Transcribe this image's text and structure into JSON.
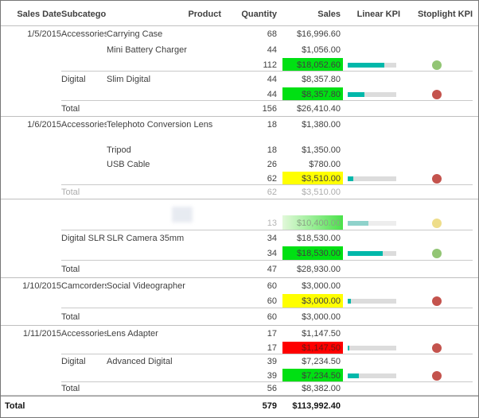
{
  "colors": {
    "kpi_bar_fill": "#01b8aa",
    "kpi_bar_track": "#dcdcdc",
    "sales_bg_green": "#00e013",
    "sales_bg_yellow": "#ffff00",
    "sales_bg_red": "#fe0000",
    "stoplight_green": "#92c574",
    "stoplight_red": "#c4534d",
    "stoplight_yellow": "#eedd8a"
  },
  "chart_data": {
    "type": "table",
    "title": "",
    "columns": [
      "Sales Date",
      "Subcategory",
      "Product",
      "Quantity",
      "Sales",
      "Linear KPI",
      "Stoplight KPI"
    ],
    "rows": [
      {
        "row_type": "detail",
        "sales_date": "1/5/2015",
        "subcategory": "Accessories",
        "product": "Carrying Case",
        "quantity": "68",
        "sales": "$16,996.60"
      },
      {
        "row_type": "detail",
        "product": "Mini Battery Charger",
        "quantity": "44",
        "sales": "$1,056.00"
      },
      {
        "row_type": "subtotal",
        "quantity": "112",
        "sales": "$18,052.60",
        "sales_bg": "green",
        "linear_kpi": 0.75,
        "stoplight": "green"
      },
      {
        "row_type": "detail",
        "subcategory": "Digital",
        "product": "Slim Digital",
        "quantity": "44",
        "sales": "$8,357.80"
      },
      {
        "row_type": "subtotal",
        "quantity": "44",
        "sales": "$8,357.80",
        "sales_bg": "green",
        "linear_kpi": 0.34,
        "stoplight": "red"
      },
      {
        "row_type": "date_total",
        "label": "Total",
        "quantity": "156",
        "sales": "$26,410.40"
      },
      {
        "row_type": "detail",
        "sales_date": "1/6/2015",
        "subcategory": "Accessories",
        "product": "Telephoto Conversion Lens",
        "quantity": "18",
        "sales": "$1,380.00"
      },
      {
        "row_type": "detail",
        "product": "Tripod",
        "quantity": "18",
        "sales": "$1,350.00"
      },
      {
        "row_type": "detail",
        "product": "USB Cable",
        "quantity": "26",
        "sales": "$780.00"
      },
      {
        "row_type": "subtotal",
        "quantity": "62",
        "sales": "$3,510.00",
        "sales_bg": "yellow",
        "linear_kpi": 0.12,
        "stoplight": "red"
      },
      {
        "row_type": "date_total",
        "muted": true,
        "label": "Total",
        "quantity": "62",
        "sales": "$3,510.00"
      },
      {
        "row_type": "detail_faded"
      },
      {
        "row_type": "subtotal",
        "ghost": true,
        "quantity": "13",
        "sales": "$10,400.00",
        "sales_bg": "green_ghost",
        "linear_kpi": 0.42,
        "stoplight": "yellow"
      },
      {
        "row_type": "detail",
        "subcategory": "Digital SLR",
        "product": "SLR Camera 35mm",
        "quantity": "34",
        "sales": "$18,530.00"
      },
      {
        "row_type": "subtotal",
        "quantity": "34",
        "sales": "$18,530.00",
        "sales_bg": "green",
        "linear_kpi": 0.72,
        "stoplight": "green"
      },
      {
        "row_type": "date_total",
        "label": "Total",
        "quantity": "47",
        "sales": "$28,930.00"
      },
      {
        "row_type": "detail",
        "sales_date": "1/10/2015",
        "subcategory": "Camcorders",
        "product": "Social Videographer",
        "quantity": "60",
        "sales": "$3,000.00"
      },
      {
        "row_type": "subtotal",
        "quantity": "60",
        "sales": "$3,000.00",
        "sales_bg": "yellow",
        "linear_kpi": 0.07,
        "stoplight": "red"
      },
      {
        "row_type": "date_total",
        "label": "Total",
        "quantity": "60",
        "sales": "$3,000.00"
      },
      {
        "row_type": "detail",
        "sales_date": "1/11/2015",
        "subcategory": "Accessories",
        "product": "Lens Adapter",
        "quantity": "17",
        "sales": "$1,147.50"
      },
      {
        "row_type": "subtotal",
        "quantity": "17",
        "sales": "$1,147.50",
        "sales_bg": "red",
        "linear_kpi": 0.04,
        "stoplight": "red"
      },
      {
        "row_type": "detail",
        "subcategory": "Digital",
        "product": "Advanced Digital",
        "quantity": "39",
        "sales": "$7,234.50"
      },
      {
        "row_type": "subtotal",
        "quantity": "39",
        "sales": "$7,234.50",
        "sales_bg": "green",
        "linear_kpi": 0.23,
        "stoplight": "red"
      },
      {
        "row_type": "date_total",
        "label": "Total",
        "quantity": "56",
        "sales": "$8,382.00"
      },
      {
        "row_type": "grand_total",
        "label": "Total",
        "quantity": "579",
        "sales": "$113,992.40"
      }
    ]
  }
}
